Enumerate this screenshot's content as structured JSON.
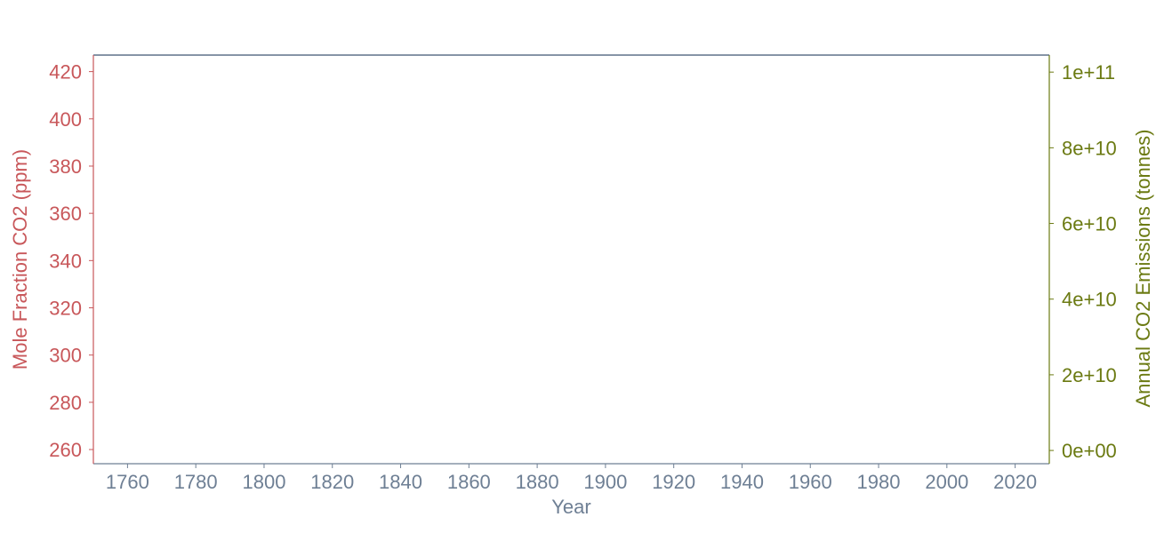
{
  "chart_data": {
    "type": "line",
    "title": "",
    "xlabel": "Year",
    "ylabel": "Mole Fraction CO2 (ppm)",
    "y2label": "Annual CO2 Emissions (tonnes)",
    "xlim": [
      1750,
      2030
    ],
    "ylim": [
      254,
      427
    ],
    "y2lim": [
      -3500000000.0,
      104500000000.0
    ],
    "x_ticks": [
      1760,
      1780,
      1800,
      1820,
      1840,
      1860,
      1880,
      1900,
      1920,
      1940,
      1960,
      1980,
      2000,
      2020
    ],
    "y_ticks": [
      260,
      280,
      300,
      320,
      340,
      360,
      380,
      400,
      420
    ],
    "y2_ticks": [
      {
        "value": 0,
        "label": "0e+00"
      },
      {
        "value": 20000000000.0,
        "label": "2e+10"
      },
      {
        "value": 40000000000.0,
        "label": "4e+10"
      },
      {
        "value": 60000000000.0,
        "label": "6e+10"
      },
      {
        "value": 80000000000.0,
        "label": "8e+10"
      },
      {
        "value": 100000000000.0,
        "label": "1e+11"
      }
    ],
    "series": [],
    "grid": false,
    "colors": {
      "left_axis": "#c8575a",
      "right_axis": "#6b7a12",
      "x_axis": "#6e7f94",
      "frame": "#5e7089"
    }
  }
}
